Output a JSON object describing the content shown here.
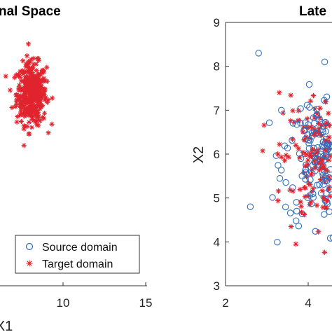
{
  "chart_data": [
    {
      "type": "scatter",
      "title": "nal Space",
      "xlabel": "X1",
      "ylabel": "",
      "xticks": [
        "10",
        "15"
      ],
      "yticks": [],
      "cluster": {
        "series": "Target domain",
        "center_x": 8.1,
        "center_y": 6.3,
        "spread": 0.45
      },
      "series": [
        {
          "name": "Source domain",
          "marker": "circle",
          "color": "#2f6fbf"
        },
        {
          "name": "Target domain",
          "marker": "asterisk",
          "color": "#e0242e"
        }
      ],
      "legend": {
        "placement": "bottom-right",
        "entries": [
          "Source domain",
          "Target domain"
        ]
      }
    },
    {
      "type": "scatter",
      "title": "Late",
      "xlabel": "",
      "ylabel": "X2",
      "xlim": [
        2,
        4.6
      ],
      "ylim": [
        3,
        9
      ],
      "xticks": [
        "2",
        "4"
      ],
      "yticks": [
        "3",
        "4",
        "5",
        "6",
        "7",
        "8",
        "9"
      ],
      "cluster": {
        "center_x": 4.5,
        "center_y": 5.9,
        "spread_x": 0.55,
        "spread_y": 0.75
      },
      "series": [
        {
          "name": "Source domain",
          "marker": "circle",
          "color": "#2f6fbf"
        },
        {
          "name": "Target domain",
          "marker": "asterisk",
          "color": "#e0242e"
        }
      ]
    }
  ]
}
